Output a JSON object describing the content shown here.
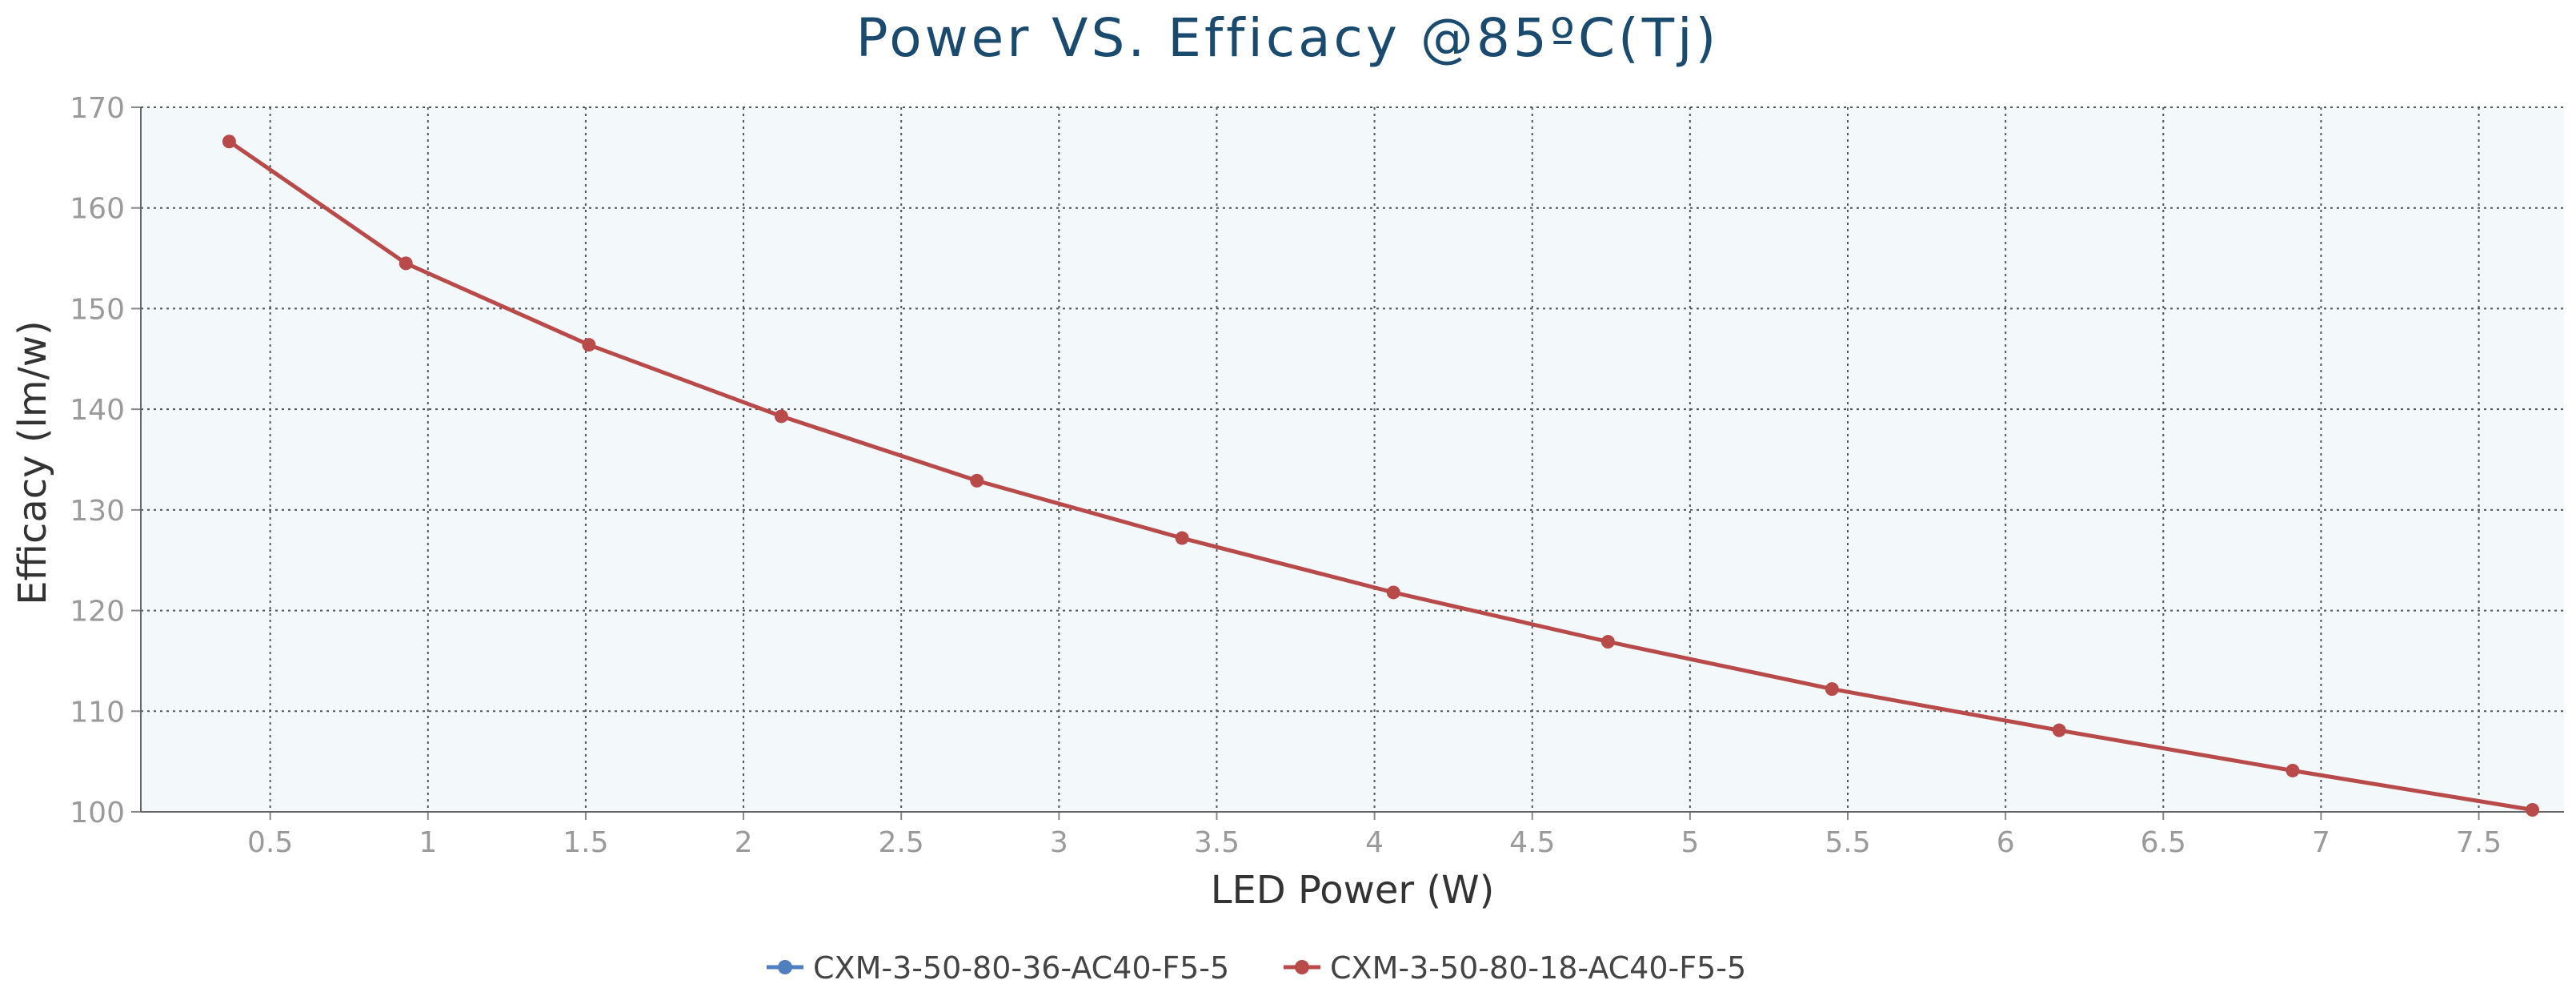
{
  "chart_data": {
    "type": "line",
    "title": "Power VS. Efficacy @85ºC(Tj)",
    "xlabel": "LED Power (W)",
    "ylabel": "Efficacy (lm/w)",
    "xlim": [
      0.09,
      7.77
    ],
    "ylim": [
      100,
      170
    ],
    "x_ticks": [
      "0.5",
      "1",
      "1.5",
      "2",
      "2.5",
      "3",
      "3.5",
      "4",
      "4.5",
      "5",
      "5.5",
      "6",
      "6.5",
      "7",
      "7.5"
    ],
    "y_ticks": [
      "100",
      "110",
      "120",
      "130",
      "140",
      "150",
      "160",
      "170"
    ],
    "grid": true,
    "legend_position": "bottom-center",
    "plot_background": "#f3f8fb",
    "series": [
      {
        "name": "CXM-3-50-80-36-AC40-F5-5",
        "color": "#4f7fbf",
        "x": [],
        "y": []
      },
      {
        "name": "CXM-3-50-80-18-AC40-F5-5",
        "color": "#b84a4a",
        "x": [
          0.37,
          0.93,
          1.51,
          2.12,
          2.74,
          3.39,
          4.06,
          4.74,
          5.45,
          6.17,
          6.91,
          7.67
        ],
        "y": [
          166.6,
          154.5,
          146.4,
          139.3,
          132.9,
          127.2,
          121.8,
          116.9,
          112.2,
          108.1,
          104.1,
          100.2
        ]
      }
    ]
  }
}
